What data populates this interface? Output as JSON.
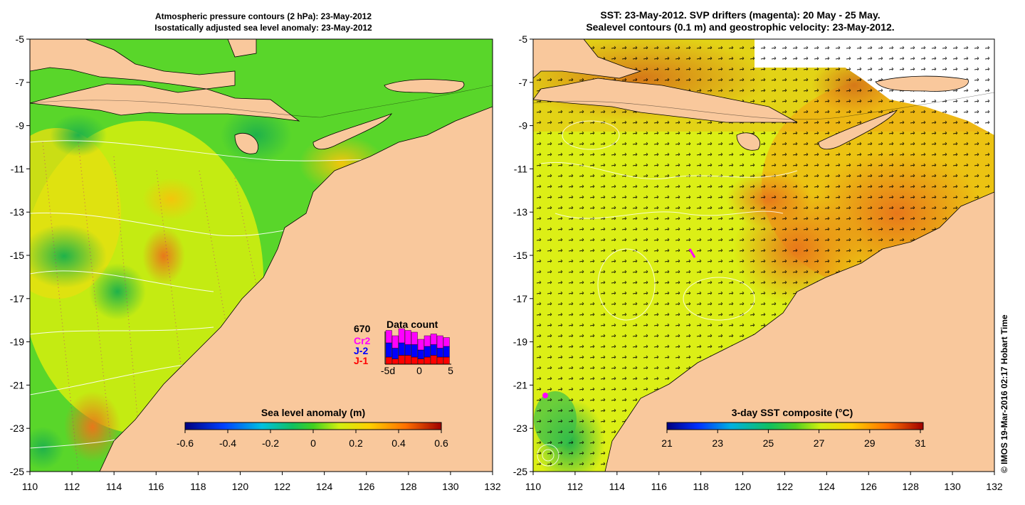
{
  "left_panel": {
    "title_line1": "Atmospheric pressure contours (2 hPa): 23-May-2012",
    "title_line2": "Isostatically adjusted sea level anomaly: 23-May-2012",
    "x_ticks": [
      "110",
      "112",
      "114",
      "116",
      "118",
      "120",
      "122",
      "124",
      "126",
      "128",
      "130",
      "132"
    ],
    "y_ticks": [
      "-5",
      "-7",
      "-9",
      "-11",
      "-13",
      "-15",
      "-17",
      "-19",
      "-21",
      "-23",
      "-25"
    ],
    "colorbar_title": "Sea level anomaly (m)",
    "colorbar_ticks": [
      "-0.6",
      "-0.4",
      "-0.2",
      "0",
      "0.2",
      "0.4",
      "0.6"
    ],
    "inset": {
      "count": "670",
      "title": "Data count",
      "legend": [
        {
          "label": "Cr2",
          "color": "#ff00ff"
        },
        {
          "label": "J-2",
          "color": "#0000ff"
        },
        {
          "label": "J-1",
          "color": "#ff0000"
        }
      ],
      "x_ticks": [
        "-5d",
        "0",
        "5"
      ],
      "bars": [
        {
          "j1": 0.2,
          "j2": 0.4,
          "cr2": 0.35
        },
        {
          "j1": 0.15,
          "j2": 0.3,
          "cr2": 0.35
        },
        {
          "j1": 0.25,
          "j2": 0.35,
          "cr2": 0.4
        },
        {
          "j1": 0.25,
          "j2": 0.3,
          "cr2": 0.4
        },
        {
          "j1": 0.2,
          "j2": 0.35,
          "cr2": 0.35
        },
        {
          "j1": 0.15,
          "j2": 0.25,
          "cr2": 0.3
        },
        {
          "j1": 0.2,
          "j2": 0.3,
          "cr2": 0.3
        },
        {
          "j1": 0.25,
          "j2": 0.3,
          "cr2": 0.3
        },
        {
          "j1": 0.2,
          "j2": 0.25,
          "cr2": 0.35
        },
        {
          "j1": 0.2,
          "j2": 0.3,
          "cr2": 0.25
        }
      ]
    }
  },
  "right_panel": {
    "title_line1": "SST: 23-May-2012. SVP drifters (magenta): 20 May - 25 May.",
    "title_line2": "Sealevel contours (0.1 m) and geostrophic velocity: 23-May-2012.",
    "x_ticks": [
      "110",
      "112",
      "114",
      "116",
      "118",
      "120",
      "122",
      "124",
      "126",
      "128",
      "130",
      "132"
    ],
    "y_ticks": [
      "-5",
      "-7",
      "-9",
      "-11",
      "-13",
      "-15",
      "-17",
      "-19",
      "-21",
      "-23",
      "-25"
    ],
    "colorbar_title": "3-day SST composite (°C)",
    "colorbar_ticks": [
      "21",
      "23",
      "25",
      "27",
      "29",
      "31"
    ]
  },
  "credit": "© IMOS 19-Mar-2016 02:17 Hobart Time",
  "colors": {
    "land": "#f9c89c",
    "sea_green": "#55d52a",
    "sea_yellow": "#d9f20a",
    "sst_orange": "#f39b16"
  }
}
